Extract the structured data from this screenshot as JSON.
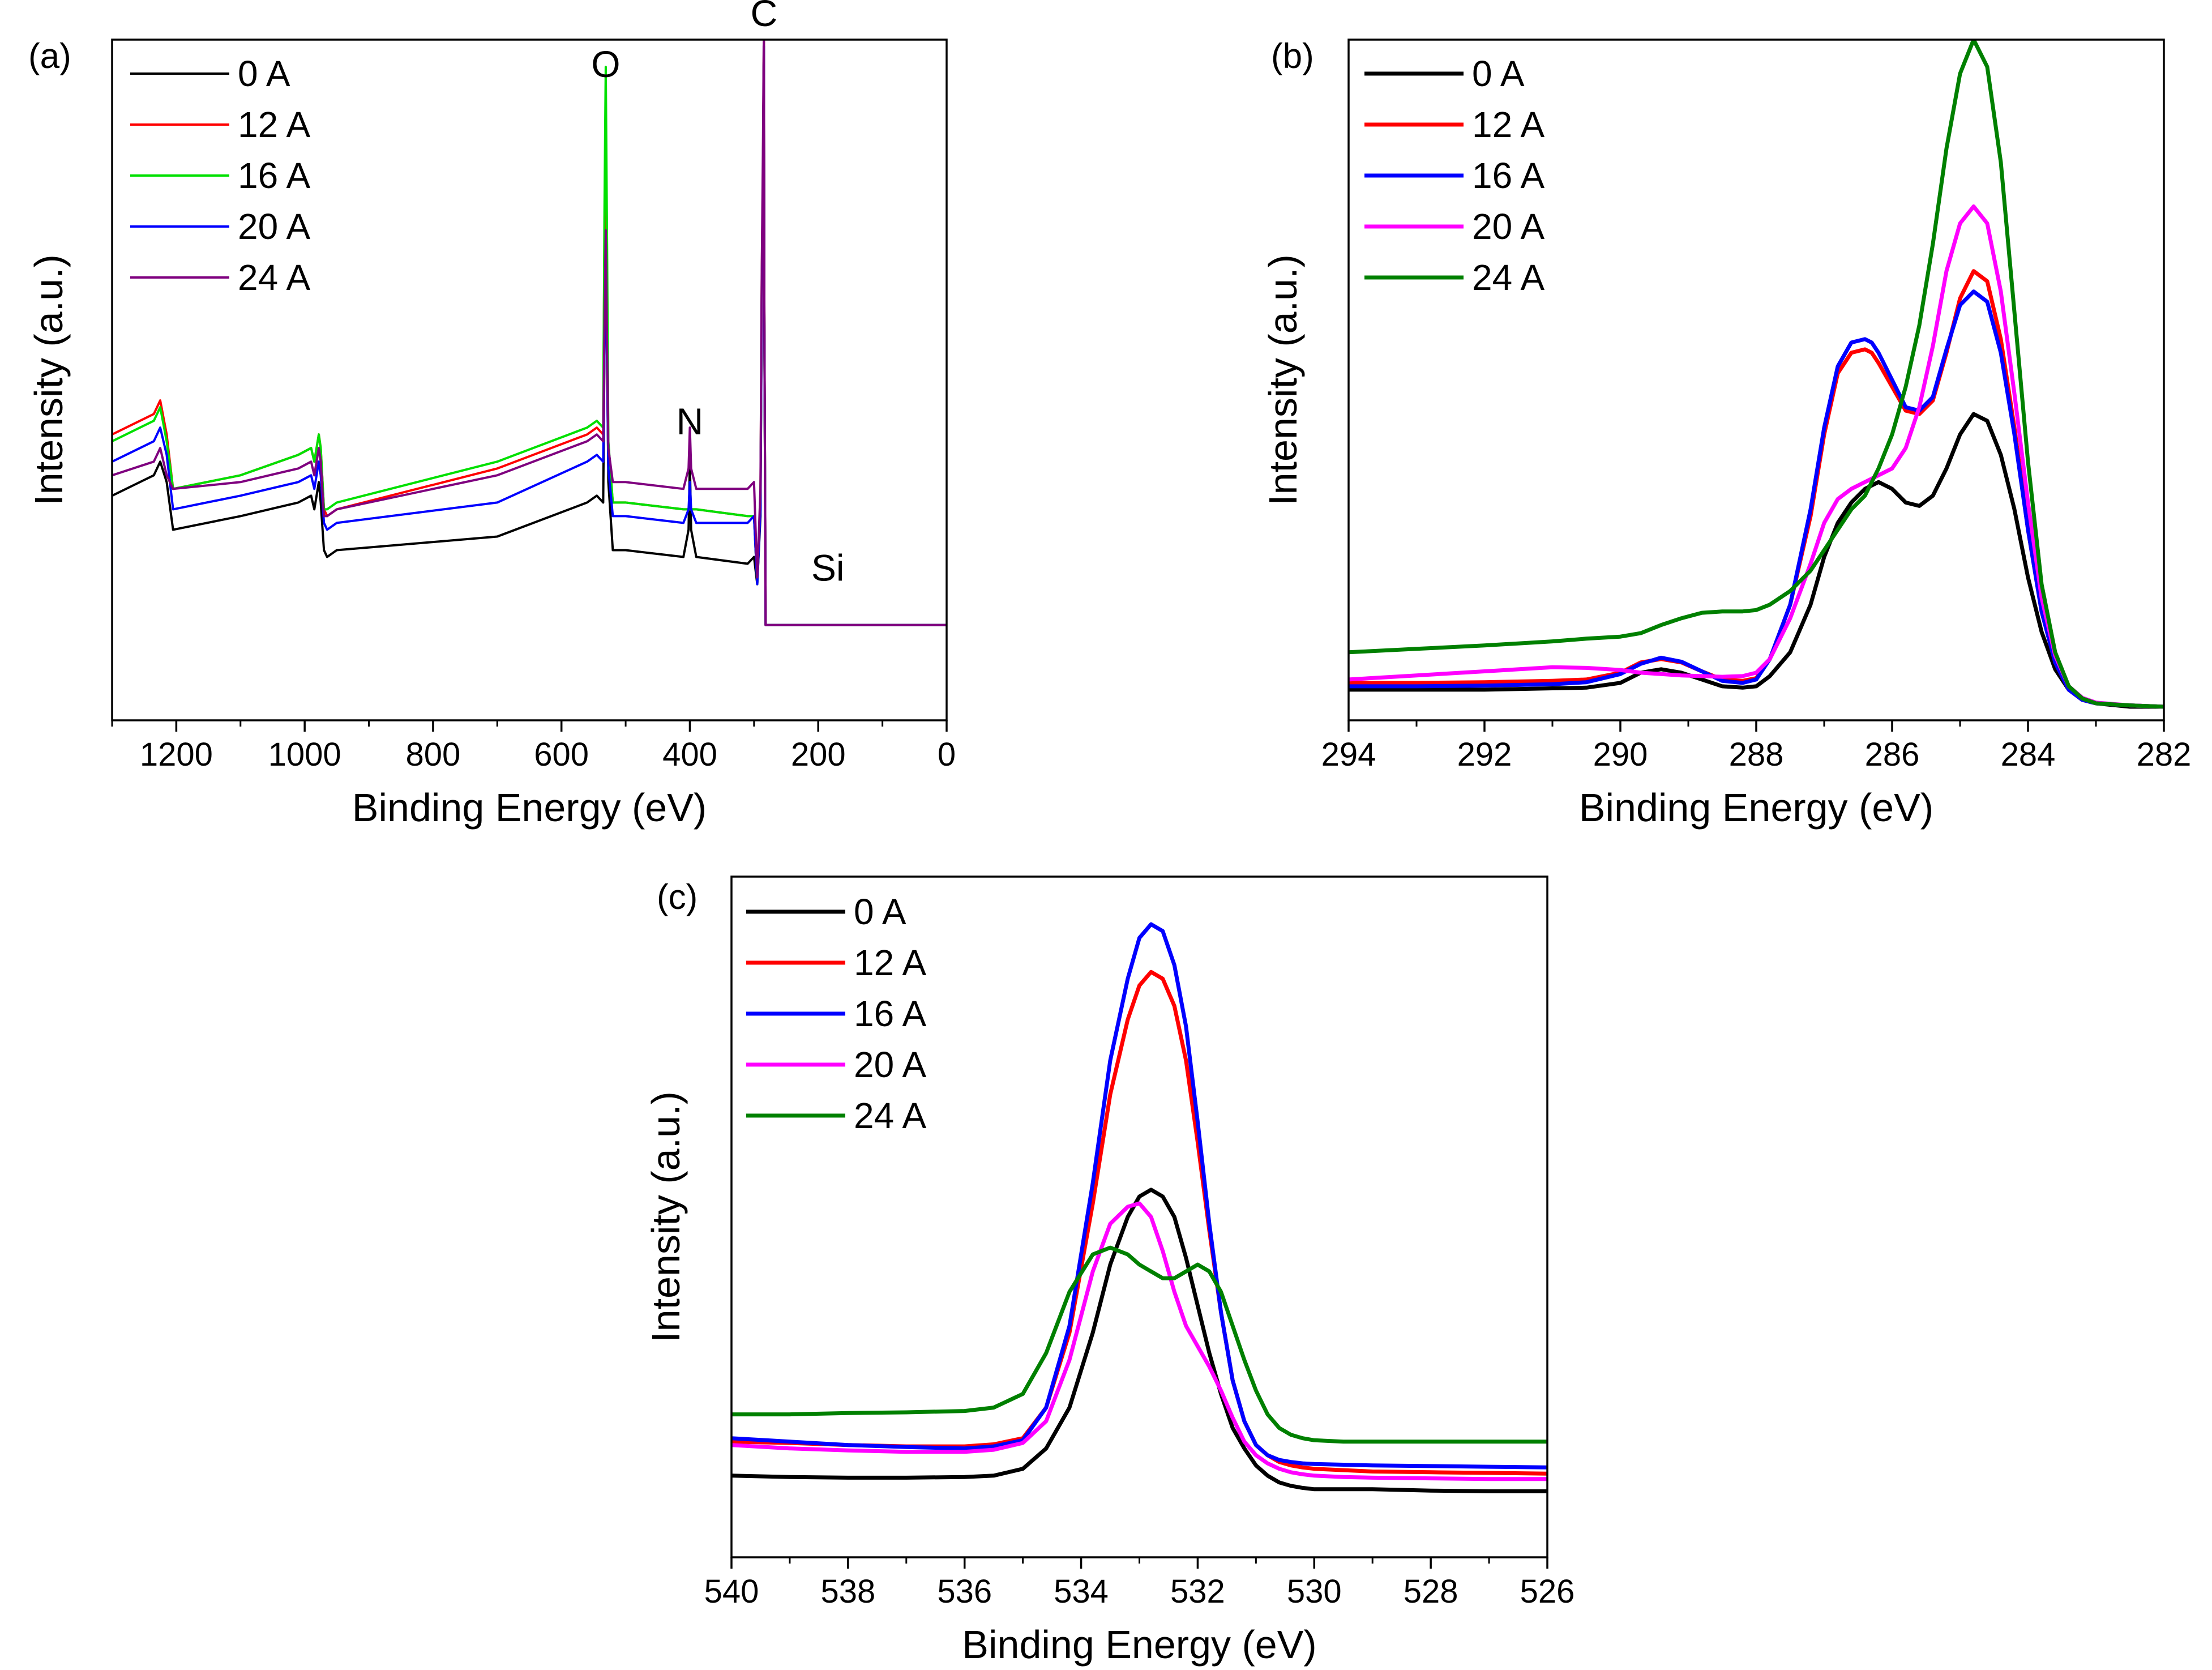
{
  "figure": {
    "panels": [
      "(a)",
      "(b)",
      "(c)"
    ]
  },
  "chart_data": [
    {
      "type": "line",
      "panel": "(a)",
      "title": "",
      "xlabel": "Binding Energy (eV)",
      "ylabel": "Intensity (a.u.)",
      "xlim": [
        1300,
        0
      ],
      "x_reversed": true,
      "xticks": [
        1200,
        1000,
        800,
        600,
        400,
        200,
        0
      ],
      "ylim": [
        0,
        1
      ],
      "yticks_shown": false,
      "legend_position": "top-left",
      "annotations": [
        {
          "text": "O",
          "x": 531,
          "y": 0.945
        },
        {
          "text": "C",
          "x": 284.6,
          "y": 1.02
        },
        {
          "text": "N",
          "x": 400,
          "y": 0.42
        },
        {
          "text": "Si",
          "x": 185,
          "y": 0.205
        }
      ],
      "x": [
        1300,
        1235,
        1225,
        1215,
        1205,
        1100,
        1010,
        990,
        985,
        978,
        975,
        970,
        965,
        950,
        700,
        560,
        545,
        535,
        533,
        531,
        529,
        527,
        520,
        500,
        410,
        402,
        400,
        398,
        390,
        310,
        300,
        295,
        290,
        288,
        286,
        285,
        284.6,
        284,
        282,
        280,
        270,
        200,
        100,
        0
      ],
      "series": [
        {
          "name": "0 A",
          "color": "#000000",
          "y": [
            0.33,
            0.36,
            0.38,
            0.35,
            0.28,
            0.3,
            0.32,
            0.33,
            0.31,
            0.35,
            0.32,
            0.25,
            0.24,
            0.25,
            0.27,
            0.32,
            0.33,
            0.32,
            0.55,
            0.75,
            0.55,
            0.35,
            0.25,
            0.25,
            0.24,
            0.28,
            0.38,
            0.28,
            0.24,
            0.23,
            0.24,
            0.2,
            0.3,
            0.62,
            0.8,
            0.96,
            0.99,
            0.6,
            0.14,
            0.14,
            0.14,
            0.14,
            0.14,
            0.14
          ]
        },
        {
          "name": "12 A",
          "color": "#ff0000",
          "y": [
            0.42,
            0.45,
            0.47,
            0.42,
            0.34,
            0.36,
            0.39,
            0.4,
            0.38,
            0.42,
            0.4,
            0.31,
            0.3,
            0.31,
            0.37,
            0.42,
            0.43,
            0.42,
            0.72,
            0.88,
            0.66,
            0.4,
            0.32,
            0.32,
            0.31,
            0.31,
            0.31,
            0.31,
            0.31,
            0.3,
            0.3,
            0.2,
            0.33,
            0.65,
            0.82,
            0.97,
            1.0,
            0.61,
            0.14,
            0.14,
            0.14,
            0.14,
            0.14,
            0.14
          ]
        },
        {
          "name": "16 A",
          "color": "#00e000",
          "y": [
            0.41,
            0.44,
            0.46,
            0.41,
            0.34,
            0.36,
            0.39,
            0.4,
            0.38,
            0.42,
            0.4,
            0.31,
            0.31,
            0.32,
            0.38,
            0.43,
            0.44,
            0.43,
            0.75,
            0.96,
            0.7,
            0.41,
            0.32,
            0.32,
            0.31,
            0.31,
            0.31,
            0.31,
            0.31,
            0.3,
            0.3,
            0.2,
            0.32,
            0.64,
            0.81,
            0.96,
            0.99,
            0.6,
            0.14,
            0.14,
            0.14,
            0.14,
            0.14,
            0.14
          ]
        },
        {
          "name": "20 A",
          "color": "#0000ff",
          "y": [
            0.38,
            0.41,
            0.43,
            0.39,
            0.31,
            0.33,
            0.35,
            0.36,
            0.34,
            0.38,
            0.36,
            0.29,
            0.28,
            0.29,
            0.32,
            0.38,
            0.39,
            0.38,
            0.55,
            0.7,
            0.52,
            0.37,
            0.3,
            0.3,
            0.29,
            0.31,
            0.35,
            0.31,
            0.29,
            0.29,
            0.3,
            0.2,
            0.31,
            0.63,
            0.81,
            0.96,
            0.99,
            0.6,
            0.14,
            0.14,
            0.14,
            0.14,
            0.14,
            0.14
          ]
        },
        {
          "name": "24 A",
          "color": "#7f007f",
          "y": [
            0.36,
            0.38,
            0.4,
            0.36,
            0.34,
            0.35,
            0.37,
            0.38,
            0.36,
            0.4,
            0.38,
            0.3,
            0.3,
            0.31,
            0.36,
            0.41,
            0.42,
            0.41,
            0.58,
            0.72,
            0.55,
            0.4,
            0.35,
            0.35,
            0.34,
            0.37,
            0.43,
            0.37,
            0.34,
            0.34,
            0.35,
            0.21,
            0.34,
            0.66,
            0.85,
            0.99,
            1.0,
            0.62,
            0.14,
            0.14,
            0.14,
            0.14,
            0.14,
            0.14
          ]
        }
      ]
    },
    {
      "type": "line",
      "panel": "(b)",
      "title": "",
      "xlabel": "Binding Energy (eV)",
      "ylabel": "Intensity (a.u.)",
      "xlim": [
        294,
        282
      ],
      "x_reversed": true,
      "xticks": [
        294,
        292,
        290,
        288,
        286,
        284,
        282
      ],
      "ylim": [
        0,
        1
      ],
      "yticks_shown": false,
      "legend_position": "top-left",
      "x": [
        294,
        293,
        292,
        291,
        290.5,
        290,
        289.7,
        289.4,
        289.1,
        288.8,
        288.5,
        288.2,
        288,
        287.8,
        287.5,
        287.2,
        287,
        286.8,
        286.6,
        286.4,
        286.3,
        286.2,
        286,
        285.8,
        285.6,
        285.4,
        285.2,
        285,
        284.8,
        284.6,
        284.4,
        284.2,
        284,
        283.8,
        283.6,
        283.4,
        283.2,
        283,
        282.5,
        282
      ],
      "series": [
        {
          "name": "0 A",
          "color": "#000000",
          "y": [
            0.045,
            0.045,
            0.045,
            0.047,
            0.048,
            0.055,
            0.07,
            0.075,
            0.07,
            0.06,
            0.05,
            0.048,
            0.05,
            0.065,
            0.1,
            0.17,
            0.24,
            0.29,
            0.32,
            0.34,
            0.345,
            0.35,
            0.34,
            0.32,
            0.315,
            0.33,
            0.37,
            0.42,
            0.45,
            0.44,
            0.39,
            0.31,
            0.21,
            0.13,
            0.075,
            0.045,
            0.03,
            0.025,
            0.02,
            0.02
          ]
        },
        {
          "name": "12 A",
          "color": "#ff0000",
          "y": [
            0.055,
            0.055,
            0.056,
            0.058,
            0.06,
            0.07,
            0.085,
            0.09,
            0.085,
            0.072,
            0.06,
            0.058,
            0.062,
            0.09,
            0.17,
            0.3,
            0.42,
            0.51,
            0.54,
            0.545,
            0.54,
            0.525,
            0.49,
            0.455,
            0.45,
            0.47,
            0.54,
            0.62,
            0.66,
            0.645,
            0.56,
            0.43,
            0.28,
            0.16,
            0.085,
            0.045,
            0.03,
            0.025,
            0.022,
            0.02
          ]
        },
        {
          "name": "16 A",
          "color": "#0000ff",
          "y": [
            0.05,
            0.05,
            0.051,
            0.053,
            0.056,
            0.068,
            0.083,
            0.092,
            0.086,
            0.072,
            0.058,
            0.055,
            0.06,
            0.09,
            0.17,
            0.31,
            0.43,
            0.52,
            0.555,
            0.56,
            0.555,
            0.54,
            0.5,
            0.46,
            0.455,
            0.475,
            0.545,
            0.61,
            0.63,
            0.615,
            0.54,
            0.42,
            0.28,
            0.16,
            0.085,
            0.045,
            0.03,
            0.025,
            0.022,
            0.02
          ]
        },
        {
          "name": "20 A",
          "color": "#ff00ff",
          "y": [
            0.06,
            0.066,
            0.072,
            0.078,
            0.077,
            0.074,
            0.07,
            0.068,
            0.066,
            0.065,
            0.064,
            0.065,
            0.07,
            0.09,
            0.15,
            0.23,
            0.29,
            0.325,
            0.34,
            0.35,
            0.355,
            0.36,
            0.37,
            0.4,
            0.46,
            0.55,
            0.66,
            0.73,
            0.755,
            0.73,
            0.63,
            0.48,
            0.32,
            0.18,
            0.095,
            0.05,
            0.033,
            0.026,
            0.022,
            0.02
          ]
        },
        {
          "name": "24 A",
          "color": "#008000",
          "y": [
            0.1,
            0.105,
            0.11,
            0.116,
            0.12,
            0.123,
            0.128,
            0.14,
            0.15,
            0.158,
            0.16,
            0.16,
            0.162,
            0.17,
            0.19,
            0.22,
            0.25,
            0.28,
            0.31,
            0.33,
            0.35,
            0.37,
            0.42,
            0.49,
            0.58,
            0.7,
            0.84,
            0.95,
            1.0,
            0.96,
            0.82,
            0.6,
            0.38,
            0.2,
            0.1,
            0.05,
            0.032,
            0.025,
            0.022,
            0.02
          ]
        }
      ]
    },
    {
      "type": "line",
      "panel": "(c)",
      "title": "",
      "xlabel": "Binding Energy (eV)",
      "ylabel": "Intensity (a.u.)",
      "xlim": [
        540,
        526
      ],
      "x_reversed": true,
      "xticks": [
        540,
        538,
        536,
        534,
        532,
        530,
        528,
        526
      ],
      "ylim": [
        0,
        1
      ],
      "yticks_shown": false,
      "legend_position": "top-left",
      "x": [
        540,
        539,
        538,
        537,
        536,
        535.5,
        535,
        534.6,
        534.2,
        533.8,
        533.5,
        533.2,
        533,
        532.8,
        532.6,
        532.4,
        532.2,
        532,
        531.8,
        531.6,
        531.4,
        531.2,
        531,
        530.8,
        530.6,
        530.4,
        530.2,
        530,
        529.5,
        529,
        528,
        527,
        526
      ],
      "series": [
        {
          "name": "0 A",
          "color": "#000000",
          "y": [
            0.12,
            0.118,
            0.117,
            0.117,
            0.118,
            0.12,
            0.13,
            0.16,
            0.22,
            0.33,
            0.43,
            0.5,
            0.53,
            0.54,
            0.53,
            0.5,
            0.44,
            0.37,
            0.3,
            0.24,
            0.19,
            0.16,
            0.135,
            0.12,
            0.11,
            0.105,
            0.102,
            0.1,
            0.1,
            0.1,
            0.098,
            0.097,
            0.097
          ]
        },
        {
          "name": "12 A",
          "color": "#ff0000",
          "y": [
            0.17,
            0.168,
            0.165,
            0.163,
            0.163,
            0.166,
            0.175,
            0.22,
            0.33,
            0.52,
            0.68,
            0.79,
            0.84,
            0.86,
            0.85,
            0.81,
            0.73,
            0.61,
            0.48,
            0.36,
            0.26,
            0.2,
            0.165,
            0.15,
            0.14,
            0.135,
            0.132,
            0.13,
            0.128,
            0.126,
            0.125,
            0.124,
            0.123
          ]
        },
        {
          "name": "16 A",
          "color": "#0000ff",
          "y": [
            0.175,
            0.17,
            0.165,
            0.162,
            0.16,
            0.163,
            0.172,
            0.22,
            0.34,
            0.55,
            0.73,
            0.85,
            0.91,
            0.93,
            0.92,
            0.87,
            0.78,
            0.64,
            0.49,
            0.36,
            0.26,
            0.2,
            0.165,
            0.15,
            0.143,
            0.14,
            0.138,
            0.137,
            0.136,
            0.135,
            0.134,
            0.133,
            0.132
          ]
        },
        {
          "name": "20 A",
          "color": "#ff00ff",
          "y": [
            0.165,
            0.16,
            0.157,
            0.155,
            0.155,
            0.158,
            0.168,
            0.2,
            0.29,
            0.42,
            0.49,
            0.515,
            0.52,
            0.5,
            0.45,
            0.39,
            0.34,
            0.31,
            0.28,
            0.245,
            0.205,
            0.17,
            0.15,
            0.138,
            0.13,
            0.125,
            0.122,
            0.12,
            0.118,
            0.117,
            0.116,
            0.115,
            0.115
          ]
        },
        {
          "name": "24 A",
          "color": "#008000",
          "y": [
            0.21,
            0.21,
            0.212,
            0.213,
            0.215,
            0.22,
            0.24,
            0.3,
            0.39,
            0.445,
            0.455,
            0.445,
            0.43,
            0.42,
            0.41,
            0.41,
            0.42,
            0.43,
            0.42,
            0.39,
            0.34,
            0.29,
            0.245,
            0.21,
            0.19,
            0.18,
            0.175,
            0.172,
            0.17,
            0.17,
            0.17,
            0.17,
            0.17
          ]
        }
      ]
    }
  ]
}
